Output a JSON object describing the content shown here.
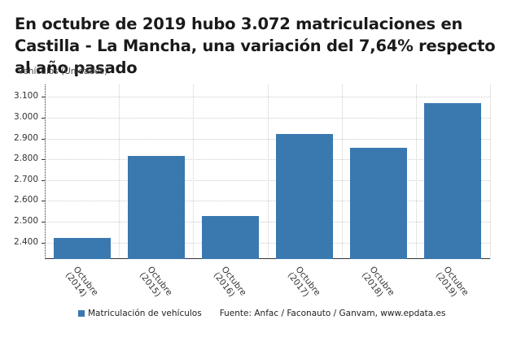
{
  "chart_data": {
    "type": "bar",
    "title": "En octubre de 2019 hubo 3.072 matriculaciones en Castilla - La Mancha, una variación del 7,64% respecto al año pasado",
    "ylabel": "Vehículos (Unidades)",
    "xlabel": "",
    "categories": [
      "Octubre (2014)",
      "Octubre (2015)",
      "Octubre (2016)",
      "Octubre (2017)",
      "Octubre (2018)",
      "Octubre (2019)"
    ],
    "category_lines": [
      [
        "Octubre",
        "(2014)"
      ],
      [
        "Octubre",
        "(2015)"
      ],
      [
        "Octubre",
        "(2016)"
      ],
      [
        "Octubre",
        "(2017)"
      ],
      [
        "Octubre",
        "(2018)"
      ],
      [
        "Octubre",
        "(2019)"
      ]
    ],
    "series": [
      {
        "name": "Matriculación de vehículos",
        "color": "#3a78b0",
        "values": [
          2420,
          2816,
          2527,
          2921,
          2854,
          3072
        ]
      }
    ],
    "ylim": [
      2320,
      3160
    ],
    "yticks": [
      2400,
      2500,
      2600,
      2700,
      2800,
      2900,
      3000,
      3100
    ],
    "ytick_labels": [
      "2.400",
      "2.500",
      "2.600",
      "2.700",
      "2.800",
      "2.900",
      "3.000",
      "3.100"
    ],
    "grid": true,
    "legend_position": "bottom",
    "source": "Fuente: Anfac / Faconauto / Ganvam, www.epdata.es"
  },
  "title": "En octubre de 2019 hubo 3.072 matriculaciones en Castilla - La Mancha, una variación del 7,64% respecto al año pasado",
  "ylabel": "Vehículos (Unidades)",
  "legend": {
    "label": "Matriculación de vehículos"
  },
  "source": "Fuente: Anfac / Faconauto / Ganvam, www.epdata.es"
}
